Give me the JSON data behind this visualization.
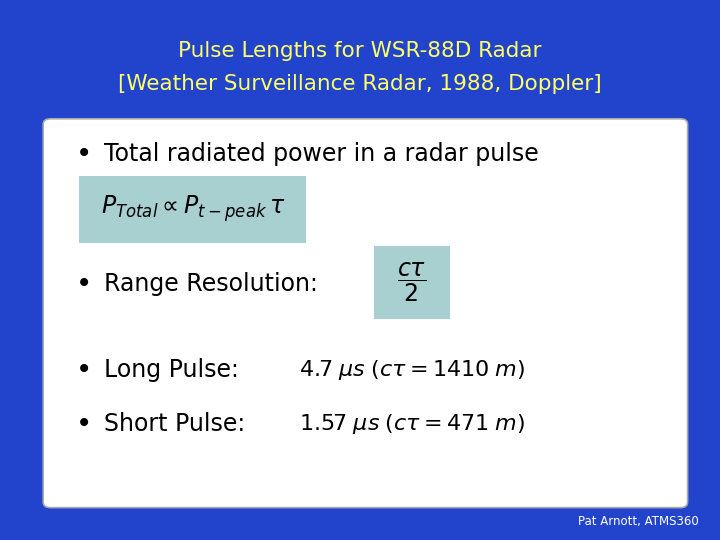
{
  "title_line1": "Pulse Lengths for WSR-88D Radar",
  "title_line2": "[Weather Surveillance Radar, 1988, Doppler]",
  "title_color": "#FFFF66",
  "background_color": "#2244CC",
  "box_bg_color": "#FFFFFF",
  "box_edge_color": "#AAAAAA",
  "highlight_color": "#A8D0D0",
  "bullet1": "Total radiated power in a radar pulse",
  "bullet2": "Range Resolution:",
  "bullet3": "Long Pulse:",
  "bullet4": "Short Pulse:",
  "credit": "Pat Arnott, ATMS360",
  "credit_color": "#FFFFFF"
}
